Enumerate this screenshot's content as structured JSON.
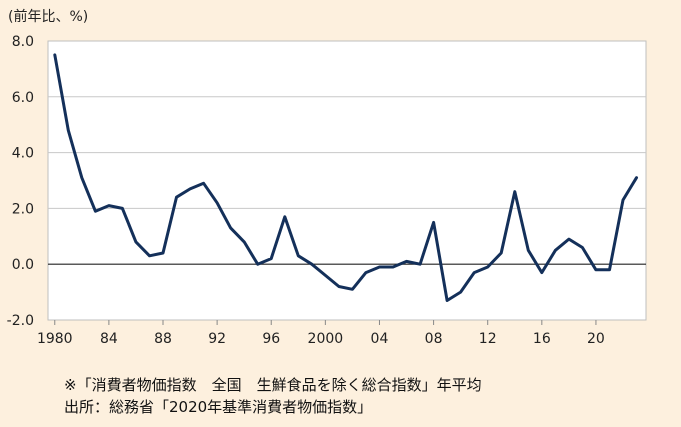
{
  "chart_data": {
    "type": "line",
    "unit_label": "(前年比、%)",
    "y_ticks": [
      "8.0",
      "6.0",
      "4.0",
      "2.0",
      "0.0",
      "-2.0"
    ],
    "x_tick_labels": [
      {
        "year": 1980,
        "label": "1980"
      },
      {
        "year": 1984,
        "label": "84"
      },
      {
        "year": 1988,
        "label": "88"
      },
      {
        "year": 1992,
        "label": "92"
      },
      {
        "year": 1996,
        "label": "96"
      },
      {
        "year": 2000,
        "label": "2000"
      },
      {
        "year": 2004,
        "label": "04"
      },
      {
        "year": 2008,
        "label": "08"
      },
      {
        "year": 2012,
        "label": "12"
      },
      {
        "year": 2016,
        "label": "16"
      },
      {
        "year": 2020,
        "label": "20"
      }
    ],
    "ylim": [
      -2,
      8
    ],
    "xlim": [
      1979.5,
      2023.7
    ],
    "grid": "horizontal",
    "series": [
      {
        "color": "#14305a",
        "x": [
          1980,
          1981,
          1982,
          1983,
          1984,
          1985,
          1986,
          1987,
          1988,
          1989,
          1990,
          1991,
          1992,
          1993,
          1994,
          1995,
          1996,
          1997,
          1998,
          1999,
          2000,
          2001,
          2002,
          2003,
          2004,
          2005,
          2006,
          2007,
          2008,
          2009,
          2010,
          2011,
          2012,
          2013,
          2014,
          2015,
          2016,
          2017,
          2018,
          2019,
          2020,
          2021,
          2022,
          2023
        ],
        "values": [
          7.5,
          4.8,
          3.1,
          1.9,
          2.1,
          2.0,
          0.8,
          0.3,
          0.4,
          2.4,
          2.7,
          2.9,
          2.2,
          1.3,
          0.8,
          0.0,
          0.2,
          1.7,
          0.3,
          0.0,
          -0.4,
          -0.8,
          -0.9,
          -0.3,
          -0.1,
          -0.1,
          0.1,
          0.0,
          1.5,
          -1.3,
          -1.0,
          -0.3,
          -0.1,
          0.4,
          2.6,
          0.5,
          -0.3,
          0.5,
          0.9,
          0.6,
          -0.2,
          -0.2,
          2.3,
          3.1
        ]
      }
    ]
  },
  "notes": {
    "line1": "※「消費者物価指数　全国　生鮮食品を除く総合指数」年平均",
    "line2": "出所：総務省「2020年基準消費者物価指数」"
  },
  "colors": {
    "background": "#fdf0de",
    "plot_background": "#ffffff",
    "line": "#14305a",
    "grid": "#c8c8c8"
  }
}
